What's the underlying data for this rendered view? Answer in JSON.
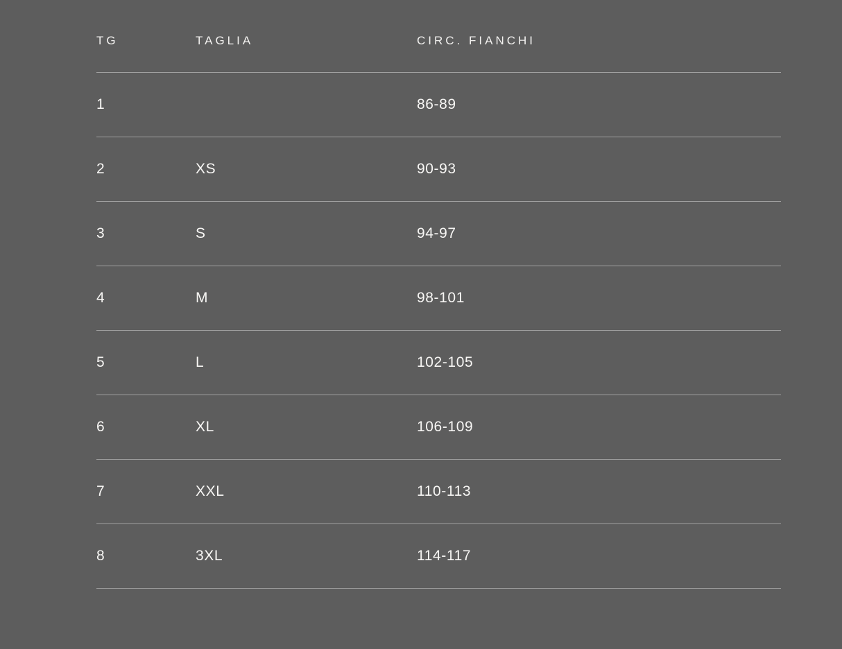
{
  "page": {
    "background_color": "#5d5d5d",
    "text_color": "#f7f6f4",
    "divider_color": "rgba(255,255,255,0.42)"
  },
  "size_chart": {
    "columns": [
      {
        "label": "TG"
      },
      {
        "label": "TAGLIA"
      },
      {
        "label": "CIRC. FIANCHI"
      }
    ],
    "rows": [
      {
        "tg": "1",
        "taglia": "",
        "circ_fianchi": "86-89"
      },
      {
        "tg": "2",
        "taglia": "XS",
        "circ_fianchi": "90-93"
      },
      {
        "tg": "3",
        "taglia": "S",
        "circ_fianchi": "94-97"
      },
      {
        "tg": "4",
        "taglia": "M",
        "circ_fianchi": "98-101"
      },
      {
        "tg": "5",
        "taglia": "L",
        "circ_fianchi": "102-105"
      },
      {
        "tg": "6",
        "taglia": "XL",
        "circ_fianchi": "106-109"
      },
      {
        "tg": "7",
        "taglia": "XXL",
        "circ_fianchi": "110-113"
      },
      {
        "tg": "8",
        "taglia": "3XL",
        "circ_fianchi": "114-117"
      }
    ]
  }
}
